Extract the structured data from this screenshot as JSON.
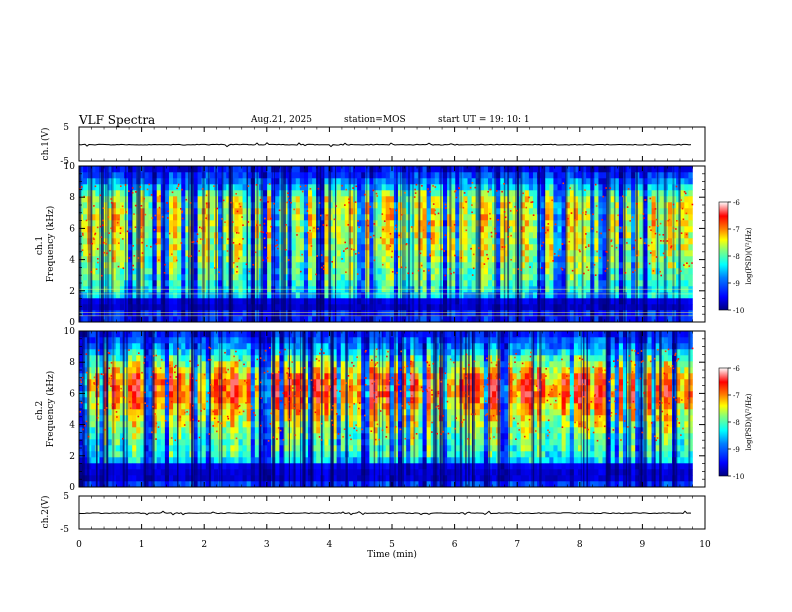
{
  "header": {
    "title": "VLF Spectra",
    "date": "Aug.21, 2025",
    "station": "station=MOS",
    "start_time": "start  UT =   19: 10: 1"
  },
  "colors": {
    "colormap": [
      "#00007f",
      "#0000ff",
      "#007fff",
      "#00ffff",
      "#7fff7f",
      "#ffff00",
      "#ff7f00",
      "#ff0000",
      "#ffffff"
    ],
    "axis": "#000000",
    "harmonic_line": "#ffff66"
  },
  "chart_data": [
    {
      "type": "line",
      "name": "waveform-ch1",
      "ylabel": "ch.1(V)",
      "ylim": [
        -5,
        5
      ],
      "yticks": [
        "5",
        "-5"
      ],
      "series": [
        {
          "name": "ch.1 waveform",
          "description": "flat trace near -0.2 V with sparse small spikes",
          "level": -0.2
        }
      ]
    },
    {
      "type": "heatmap",
      "name": "spectrogram-ch1",
      "ylabel": "ch.1\nFrequency (kHz)",
      "ylim": [
        0,
        10
      ],
      "yticks": [
        "0",
        "2",
        "4",
        "6",
        "8",
        "10"
      ],
      "xlim": [
        0,
        9.8
      ],
      "noise_band_khz": [
        1.8,
        2.1,
        0.4,
        0.6
      ],
      "dark_band_khz": [
        0.6,
        1.6
      ],
      "colorbar": {
        "label": "log(PSD)(V²/Hz)",
        "range": [
          -10,
          -6
        ],
        "ticks": [
          "-6",
          "-7",
          "-8",
          "-9",
          "-10"
        ]
      },
      "profile": [
        {
          "freq_khz": 0.0,
          "level": 0.15
        },
        {
          "freq_khz": 1.0,
          "level": 0.2
        },
        {
          "freq_khz": 2.0,
          "level": 0.42
        },
        {
          "freq_khz": 3.0,
          "level": 0.5
        },
        {
          "freq_khz": 4.0,
          "level": 0.55
        },
        {
          "freq_khz": 5.0,
          "level": 0.58
        },
        {
          "freq_khz": 6.0,
          "level": 0.6
        },
        {
          "freq_khz": 7.0,
          "level": 0.6
        },
        {
          "freq_khz": 8.0,
          "level": 0.57
        },
        {
          "freq_khz": 9.0,
          "level": 0.3
        },
        {
          "freq_khz": 10.0,
          "level": 0.1
        }
      ]
    },
    {
      "type": "heatmap",
      "name": "spectrogram-ch2",
      "ylabel": "ch.2\nFrequency (kHz)",
      "ylim": [
        0,
        10
      ],
      "yticks": [
        "0",
        "2",
        "4",
        "6",
        "8",
        "10"
      ],
      "xlim": [
        0,
        9.8
      ],
      "dark_band_khz": [
        0.3,
        1.6
      ],
      "colorbar": {
        "label": "log(PSD)(V²/Hz)",
        "range": [
          -10,
          -6
        ],
        "ticks": [
          "-6",
          "-7",
          "-8",
          "-9",
          "-10"
        ]
      },
      "profile": [
        {
          "freq_khz": 0.0,
          "level": 0.2
        },
        {
          "freq_khz": 1.0,
          "level": 0.25
        },
        {
          "freq_khz": 2.0,
          "level": 0.45
        },
        {
          "freq_khz": 3.0,
          "level": 0.5
        },
        {
          "freq_khz": 4.0,
          "level": 0.58
        },
        {
          "freq_khz": 5.0,
          "level": 0.68
        },
        {
          "freq_khz": 6.0,
          "level": 0.78
        },
        {
          "freq_khz": 7.0,
          "level": 0.75
        },
        {
          "freq_khz": 8.0,
          "level": 0.55
        },
        {
          "freq_khz": 9.0,
          "level": 0.32
        },
        {
          "freq_khz": 10.0,
          "level": 0.15
        }
      ]
    },
    {
      "type": "line",
      "name": "waveform-ch2",
      "ylabel": "ch.2(V)",
      "ylim": [
        -5,
        5
      ],
      "yticks": [
        "5",
        "-5"
      ],
      "series": [
        {
          "name": "ch.2 waveform",
          "description": "flat trace near -0.2 V with sparse small spikes",
          "level": -0.2
        }
      ]
    }
  ],
  "xaxis": {
    "label": "Time  (min)",
    "range": [
      0,
      10
    ],
    "ticks": [
      "0",
      "1",
      "2",
      "3",
      "4",
      "5",
      "6",
      "7",
      "8",
      "9",
      "10"
    ]
  }
}
